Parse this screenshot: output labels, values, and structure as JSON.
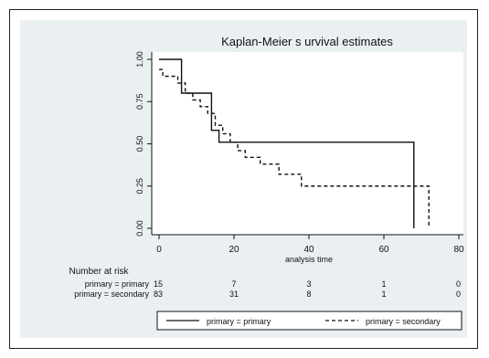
{
  "chart_data": {
    "type": "line",
    "title": "Kaplan-Meier s urvival estimates",
    "xlabel": "analysis time",
    "ylabel": "",
    "xlim": [
      0,
      80
    ],
    "ylim": [
      0,
      1
    ],
    "x_ticks": [
      "0",
      "20",
      "40",
      "60",
      "80"
    ],
    "y_ticks": [
      "0.00",
      "0.25",
      "0.50",
      "0.75",
      "1.00"
    ],
    "grid": false,
    "legend": "bottom",
    "series": [
      {
        "name": "primary = primary",
        "style": "solid",
        "x": [
          0,
          6,
          10,
          14,
          16,
          18,
          68
        ],
        "y": [
          1.0,
          0.8,
          0.8,
          0.58,
          0.51,
          0.51,
          0.0
        ]
      },
      {
        "name": "primary = secondary",
        "style": "dashed",
        "x": [
          0,
          1,
          5,
          7,
          9,
          11,
          13,
          15,
          17,
          19,
          21,
          23,
          27,
          32,
          38,
          72
        ],
        "y": [
          0.94,
          0.9,
          0.86,
          0.8,
          0.76,
          0.72,
          0.68,
          0.61,
          0.56,
          0.51,
          0.46,
          0.42,
          0.38,
          0.32,
          0.25,
          0.0
        ]
      }
    ],
    "risk_table": {
      "title": "Number at risk",
      "rows": [
        {
          "label": "primary = primary",
          "values": [
            "15",
            "7",
            "3",
            "1",
            "0"
          ]
        },
        {
          "label": "primary = secondary",
          "values": [
            "83",
            "31",
            "8",
            "1",
            "0"
          ]
        }
      ]
    },
    "colors": {
      "background": "#eaf0f2",
      "line": "#111111"
    }
  }
}
